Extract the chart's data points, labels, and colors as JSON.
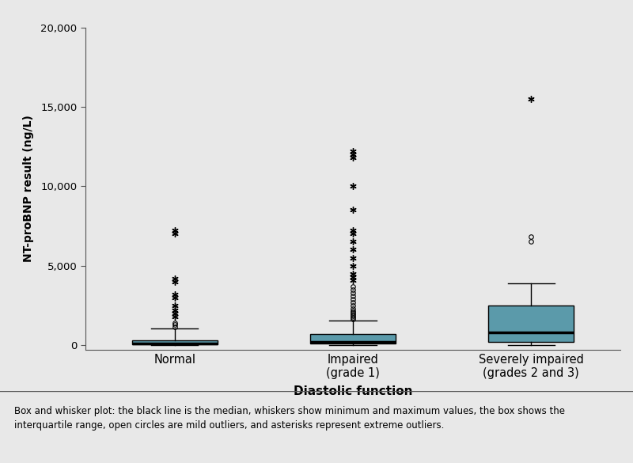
{
  "title": "",
  "ylabel": "NT-proBNP result (ng/L)",
  "xlabel": "Diastolic function",
  "categories": [
    "Normal",
    "Impaired\n(grade 1)",
    "Severely impaired\n(grades 2 and 3)"
  ],
  "ylim": [
    -300,
    20000
  ],
  "yticks": [
    0,
    5000,
    10000,
    15000,
    20000
  ],
  "ytick_labels": [
    "0",
    "5,000",
    "10,000",
    "15,000",
    "20,000"
  ],
  "box_color": "#5b9aaa",
  "median_color": "#000000",
  "whisker_color": "#000000",
  "box_data": [
    {
      "q1": 50,
      "median": 100,
      "q3": 280,
      "whisker_low": 0,
      "whisker_high": 1050,
      "mild_outliers": [
        1150,
        1270,
        1380
      ],
      "extreme_outliers": [
        1800,
        2000,
        2200,
        2500,
        3000,
        3200,
        4000,
        4200,
        7000,
        7200
      ]
    },
    {
      "q1": 100,
      "median": 200,
      "q3": 680,
      "whisker_low": 0,
      "whisker_high": 1550,
      "mild_outliers": [
        1650,
        1750,
        1850,
        1950,
        2050,
        2150,
        2300,
        2500,
        2700,
        2900,
        3100,
        3300,
        3500,
        3700
      ],
      "extreme_outliers": [
        4100,
        4300,
        4500,
        5000,
        5500,
        6000,
        6500,
        7000,
        7200,
        8500,
        10000,
        11800,
        12000,
        12200
      ]
    },
    {
      "q1": 200,
      "median": 800,
      "q3": 2500,
      "whisker_low": 0,
      "whisker_high": 3900,
      "mild_outliers": [
        6500,
        6800
      ],
      "extreme_outliers": [
        15500
      ]
    }
  ],
  "background_color": "#e8e8e8",
  "plot_bg_color": "#e8e8e8",
  "caption": "Box and whisker plot: the black line is the median, whiskers show minimum and maximum values, the box shows the\ninterquartile range, open circles are mild outliers, and asterisks represent extreme outliers.",
  "caption_bg": "#b0b0b0"
}
